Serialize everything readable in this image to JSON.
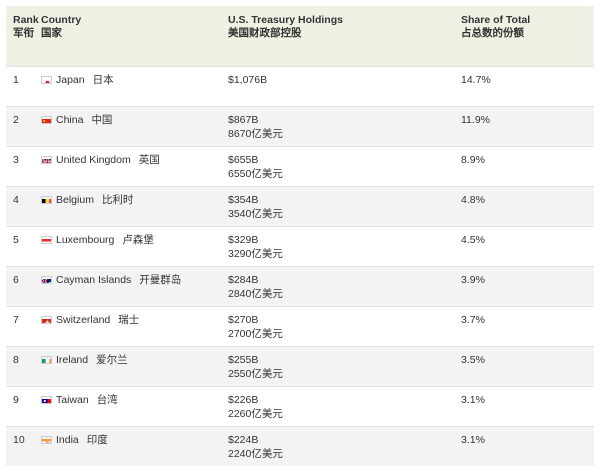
{
  "header": {
    "rank": "Rank",
    "rank_zh": "军衔",
    "country": "Country",
    "country_zh": "国家",
    "holdings": "U.S. Treasury Holdings",
    "holdings_zh": "美国财政部控股",
    "share": "Share of Total",
    "share_zh": "占总数的份额"
  },
  "rows": [
    {
      "rank": "1",
      "country": "Japan",
      "country_zh": "日本",
      "holding": "$1,076B",
      "holding_zh": "",
      "share": "14.7%",
      "flag": "japan-flag"
    },
    {
      "rank": "2",
      "country": "China",
      "country_zh": "中国",
      "holding": "$867B",
      "holding_zh": "8670亿美元",
      "share": "11.9%",
      "flag": "china-flag"
    },
    {
      "rank": "3",
      "country": "United Kingdom",
      "country_zh": "英国",
      "holding": "$655B",
      "holding_zh": "6550亿美元",
      "share": "8.9%",
      "flag": "uk-flag"
    },
    {
      "rank": "4",
      "country": "Belgium",
      "country_zh": "比利时",
      "holding": "$354B",
      "holding_zh": "3540亿美元",
      "share": "4.8%",
      "flag": "belgium-flag"
    },
    {
      "rank": "5",
      "country": "Luxembourg",
      "country_zh": "卢森堡",
      "holding": "$329B",
      "holding_zh": "3290亿美元",
      "share": "4.5%",
      "flag": "luxembourg-flag"
    },
    {
      "rank": "6",
      "country": "Cayman Islands",
      "country_zh": "开曼群岛",
      "holding": "$284B",
      "holding_zh": "2840亿美元",
      "share": "3.9%",
      "flag": "cayman-flag"
    },
    {
      "rank": "7",
      "country": "Switzerland",
      "country_zh": "瑞士",
      "holding": "$270B",
      "holding_zh": "2700亿美元",
      "share": "3.7%",
      "flag": "switzerland-flag"
    },
    {
      "rank": "8",
      "country": "Ireland",
      "country_zh": "爱尔兰",
      "holding": "$255B",
      "holding_zh": "2550亿美元",
      "share": "3.5%",
      "flag": "ireland-flag"
    },
    {
      "rank": "9",
      "country": "Taiwan",
      "country_zh": "台湾",
      "holding": "$226B",
      "holding_zh": "2260亿美元",
      "share": "3.1%",
      "flag": "taiwan-flag"
    },
    {
      "rank": "10",
      "country": "India",
      "country_zh": "印度",
      "holding": "$224B",
      "holding_zh": "2240亿美元",
      "share": "3.1%",
      "flag": "india-flag"
    }
  ]
}
